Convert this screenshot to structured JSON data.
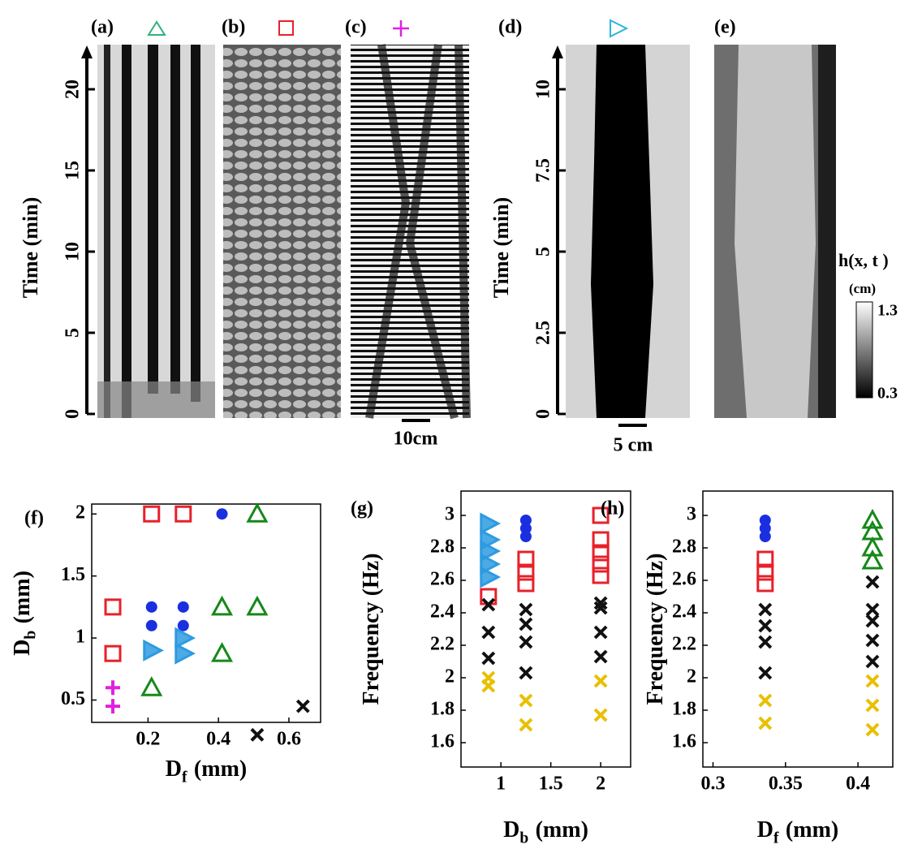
{
  "chart_data": [
    {
      "type": "kymograph",
      "ylabel": "Time (min)",
      "ylim": [
        0,
        22.5
      ],
      "yticks": [
        0,
        5,
        10,
        15,
        20
      ],
      "panels": [
        "(a)",
        "(b)",
        "(c)"
      ],
      "scale_bar": "10cm"
    },
    {
      "type": "kymograph",
      "ylabel": "Time (min)",
      "ylim": [
        0,
        11.25
      ],
      "yticks": [
        0,
        2.5,
        5,
        7.5,
        10
      ],
      "panels": [
        "(d)",
        "(e)"
      ],
      "scale_bar": "5 cm",
      "colorbar": {
        "label": "h(x, t )",
        "unit": "(cm)",
        "lim": [
          0.3,
          1.3
        ],
        "ticks": [
          0.3,
          1.3
        ]
      }
    },
    {
      "type": "scatter",
      "panel": "(f)",
      "xlabel": [
        "D",
        "f",
        "(mm)"
      ],
      "ylabel": [
        "D",
        "b",
        "(mm)"
      ],
      "xlim": [
        0.04,
        0.69
      ],
      "ylim": [
        0.32,
        2.08
      ],
      "xticks": [
        0.2,
        0.4,
        0.6
      ],
      "yticks": [
        0.5,
        1,
        1.5,
        2
      ],
      "series": [
        {
          "marker": "square",
          "color": "#e8202a",
          "x": [
            0.21,
            0.3,
            0.1,
            0.1
          ],
          "values": [
            2,
            2,
            1.25,
            0.875
          ]
        },
        {
          "marker": "circle",
          "color": "#1a2fe0",
          "x": [
            0.41,
            0.21,
            0.3,
            0.21,
            0.3
          ],
          "values": [
            2,
            1.25,
            1.25,
            1.1,
            1.1
          ]
        },
        {
          "marker": "right-triangle",
          "color": "#2e9be0",
          "x": [
            0.21,
            0.3,
            0.3
          ],
          "values": [
            0.9,
            1.0,
            0.875
          ]
        },
        {
          "marker": "triangle",
          "color": "#16881a",
          "x": [
            0.51,
            0.41,
            0.51,
            0.41,
            0.21
          ],
          "values": [
            2,
            1.25,
            1.25,
            0.875,
            0.6
          ]
        },
        {
          "marker": "plus",
          "color": "#e020e0",
          "x": [
            0.1,
            0.1
          ],
          "values": [
            0.6,
            0.45
          ]
        },
        {
          "marker": "x",
          "color": "#111111",
          "x": [
            0.64,
            0.51
          ],
          "values": [
            0.45,
            0.22
          ]
        }
      ]
    },
    {
      "type": "scatter",
      "panel": "(g)",
      "xlabel": [
        "D",
        "b",
        "(mm)"
      ],
      "ylabel": [
        "Frequency (Hz)"
      ],
      "xlim": [
        0.6,
        2.3
      ],
      "ylim": [
        1.45,
        3.15
      ],
      "xticks": [
        1,
        1.5,
        2
      ],
      "yticks": [
        1.6,
        1.8,
        2,
        2.2,
        2.4,
        2.6,
        2.8,
        3
      ],
      "series": [
        {
          "marker": "right-triangle",
          "color": "#2e9be0",
          "x": [
            0.875,
            0.875,
            0.875,
            0.875,
            0.875
          ],
          "values": [
            2.95,
            2.85,
            2.78,
            2.7,
            2.62
          ]
        },
        {
          "marker": "square",
          "color": "#e8202a",
          "x": [
            0.875,
            1.25,
            1.25,
            1.25,
            2,
            2,
            2,
            2,
            2
          ],
          "values": [
            2.5,
            2.73,
            2.65,
            2.58,
            3.0,
            2.85,
            2.77,
            2.7,
            2.63
          ]
        },
        {
          "marker": "circle",
          "color": "#1a2fe0",
          "x": [
            1.25,
            1.25,
            1.25
          ],
          "values": [
            2.97,
            2.92,
            2.87
          ]
        },
        {
          "marker": "x",
          "color": "#111111",
          "x": [
            0.875,
            0.875,
            0.875,
            1.25,
            1.25,
            1.25,
            1.25,
            2,
            2,
            2,
            2
          ],
          "values": [
            2.45,
            2.28,
            2.12,
            2.42,
            2.33,
            2.22,
            2.03,
            2.46,
            2.43,
            2.28,
            2.13
          ]
        },
        {
          "marker": "x",
          "color": "#e8c000",
          "x": [
            0.875,
            0.875,
            1.25,
            1.25,
            2,
            2
          ],
          "values": [
            2.0,
            1.95,
            1.86,
            1.71,
            1.98,
            1.77
          ]
        }
      ]
    },
    {
      "type": "scatter",
      "panel": "(h)",
      "xlabel": [
        "D",
        "f",
        "(mm)"
      ],
      "ylabel": [
        "Frequency (Hz)"
      ],
      "xlim": [
        0.293,
        0.424
      ],
      "ylim": [
        1.45,
        3.15
      ],
      "xticks": [
        0.3,
        0.35,
        0.4
      ],
      "yticks": [
        1.6,
        1.8,
        2,
        2.2,
        2.4,
        2.6,
        2.8,
        3
      ],
      "series": [
        {
          "marker": "circle",
          "color": "#1a2fe0",
          "x": [
            0.336,
            0.336,
            0.336
          ],
          "values": [
            2.97,
            2.92,
            2.87
          ]
        },
        {
          "marker": "square",
          "color": "#e8202a",
          "x": [
            0.336,
            0.336,
            0.336
          ],
          "values": [
            2.73,
            2.65,
            2.58
          ]
        },
        {
          "marker": "triangle",
          "color": "#16881a",
          "x": [
            0.41,
            0.41,
            0.41,
            0.41
          ],
          "values": [
            2.97,
            2.9,
            2.8,
            2.72
          ]
        },
        {
          "marker": "x",
          "color": "#111111",
          "x": [
            0.336,
            0.336,
            0.336,
            0.336,
            0.41,
            0.41,
            0.41,
            0.41,
            0.41
          ],
          "values": [
            2.42,
            2.32,
            2.22,
            2.03,
            2.59,
            2.42,
            2.35,
            2.23,
            2.1
          ]
        },
        {
          "marker": "x",
          "color": "#e8c000",
          "x": [
            0.336,
            0.336,
            0.41,
            0.41,
            0.41
          ],
          "values": [
            1.86,
            1.72,
            1.98,
            1.83,
            1.68
          ]
        }
      ]
    }
  ]
}
